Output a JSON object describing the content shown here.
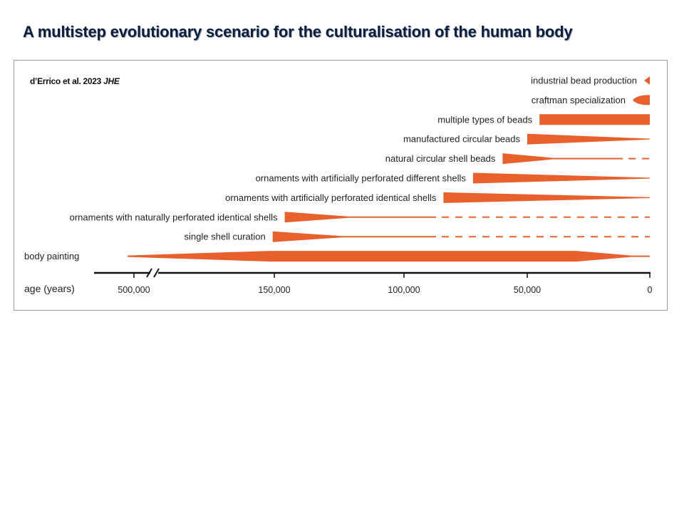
{
  "slide": {
    "title": "A multistep evolutionary scenario for the culturalisation of the human body"
  },
  "citation": {
    "authors": "d’Errico et al. 2023",
    "journal": "JHE"
  },
  "colors": {
    "accent": "#e8612c",
    "axis": "#111111",
    "title": "#0b1f3f"
  },
  "chart_data": {
    "type": "timeline",
    "title": "",
    "xlabel": "age (years)",
    "axis_break": "after 500,000",
    "x_ticks": [
      {
        "label": "500,000",
        "value": 500000
      },
      {
        "label": "150,000",
        "value": 150000
      },
      {
        "label": "100,000",
        "value": 100000
      },
      {
        "label": "50,000",
        "value": 50000
      },
      {
        "label": "0",
        "value": 0
      }
    ],
    "rows": [
      {
        "label": "industrial bead production",
        "shape": "wedge",
        "start": 1
      },
      {
        "label": "craftman specialization",
        "shape": "drop",
        "start": 7
      },
      {
        "label": "multiple types of beads",
        "shape": "bar",
        "start": 45000,
        "end": 0
      },
      {
        "label": "manufactured circular beads",
        "shape": "taper",
        "start": 50000,
        "end": 0
      },
      {
        "label": "natural circular shell beads",
        "shape": "taper-dashed",
        "start": 60000,
        "solid_end": 11000,
        "end": 0
      },
      {
        "label": "ornaments with artificially perforated different shells",
        "shape": "taper",
        "start": 72000,
        "end": 0
      },
      {
        "label": "ornaments with artificially perforated identical shells",
        "shape": "taper",
        "start": 84000,
        "end": 0
      },
      {
        "label": "ornaments with naturally perforated identical shells",
        "shape": "taper-dashed",
        "start": 146000,
        "solid_end": 87000,
        "end": 0
      },
      {
        "label": "single shell curation",
        "shape": "taper-dashed",
        "start": 154000,
        "solid_end": 87000,
        "end": 0
      },
      {
        "label": "body painting",
        "shape": "lens",
        "start": 550000,
        "full_from": 160000,
        "full_to": 30000,
        "end": 0
      }
    ]
  }
}
